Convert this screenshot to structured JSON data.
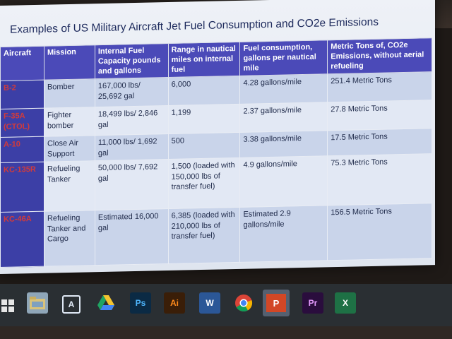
{
  "slide": {
    "title": "Examples of US Military Aircraft Jet Fuel Consumption and CO2e Emissions",
    "headers": [
      "Aircraft",
      "Mission",
      "Internal Fuel Capacity pounds and gallons",
      "Range in nautical miles on internal fuel",
      "Fuel consumption, gallons per nautical mile",
      "Metric Tons of, CO2e Emissions, without aerial refueling"
    ],
    "rows": [
      [
        "B-2",
        "Bomber",
        "167,000 lbs/ 25,692 gal",
        "6,000",
        "4.28 gallons/mile",
        "251.4 Metric Tons"
      ],
      [
        "F-35A (CTOL)",
        "Fighter bomber",
        "18,499 lbs/ 2,846 gal",
        "1,199",
        "2.37 gallons/mile",
        "27.8 Metric Tons"
      ],
      [
        "A-10",
        "Close Air Support",
        "11,000 lbs/ 1,692 gal",
        "500",
        "3.38 gallons/mile",
        "17.5 Metric Tons"
      ],
      [
        "KC-135R",
        "Refueling Tanker",
        "50,000 lbs/ 7,692 gal",
        "1,500 (loaded with 150,000 lbs of transfer fuel)",
        "4.9 gallons/mile",
        "75.3 Metric Tons"
      ],
      [
        "KC-46A",
        "Refueling Tanker and Cargo",
        "Estimated 16,000 gal",
        "6,385 (loaded with 210,000 lbs of transfer fuel)",
        "Estimated 2.9 gallons/mile",
        "156.5 Metric Tons"
      ]
    ]
  },
  "taskbar": {
    "items": [
      {
        "name": "windows-start-icon",
        "label": ""
      },
      {
        "name": "file-explorer-icon",
        "label": ""
      },
      {
        "name": "app-a-icon",
        "label": "A"
      },
      {
        "name": "google-drive-icon",
        "label": ""
      },
      {
        "name": "photoshop-icon",
        "label": "Ps"
      },
      {
        "name": "illustrator-icon",
        "label": "Ai"
      },
      {
        "name": "word-icon",
        "label": "W"
      },
      {
        "name": "chrome-icon",
        "label": ""
      },
      {
        "name": "powerpoint-icon",
        "label": "P"
      },
      {
        "name": "premiere-icon",
        "label": "Pr"
      },
      {
        "name": "excel-icon",
        "label": "X"
      }
    ]
  }
}
